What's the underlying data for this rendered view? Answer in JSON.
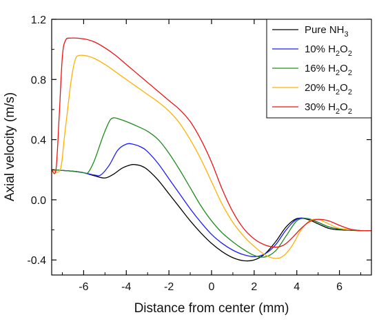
{
  "chart_data": {
    "type": "line",
    "xlabel": "Distance from center (mm)",
    "ylabel": "Axial velocity (m/s)",
    "xlim": [
      -7.5,
      7.5
    ],
    "ylim": [
      -0.5,
      1.2
    ],
    "xticks": [
      -6,
      -4,
      -2,
      0,
      2,
      4,
      6
    ],
    "xtick_labels": [
      "-6",
      "-4",
      "-2",
      "0",
      "2",
      "4",
      "6"
    ],
    "yticks": [
      -0.4,
      0.0,
      0.4,
      0.8,
      1.2
    ],
    "ytick_labels": [
      "-0.4",
      "0.0",
      "0.4",
      "0.8",
      "1.2"
    ],
    "grid": false,
    "legend_position": "top-right",
    "series": [
      {
        "name": "Pure NH3",
        "legend": {
          "base": "Pure NH",
          "sub": "3",
          "tail": ""
        },
        "color": "#000000",
        "points": [
          [
            -7.5,
            0.2
          ],
          [
            -6.5,
            0.19
          ],
          [
            -6.0,
            0.18
          ],
          [
            -5.5,
            0.16
          ],
          [
            -5.0,
            0.145
          ],
          [
            -4.6,
            0.17
          ],
          [
            -4.2,
            0.21
          ],
          [
            -3.8,
            0.232
          ],
          [
            -3.6,
            0.234
          ],
          [
            -3.3,
            0.225
          ],
          [
            -3.0,
            0.2
          ],
          [
            -2.5,
            0.13
          ],
          [
            -2.0,
            0.04
          ],
          [
            -1.5,
            -0.05
          ],
          [
            -1.0,
            -0.14
          ],
          [
            -0.5,
            -0.22
          ],
          [
            0.0,
            -0.29
          ],
          [
            0.5,
            -0.345
          ],
          [
            1.0,
            -0.385
          ],
          [
            1.5,
            -0.405
          ],
          [
            2.0,
            -0.4
          ],
          [
            2.5,
            -0.36
          ],
          [
            3.0,
            -0.28
          ],
          [
            3.5,
            -0.18
          ],
          [
            4.0,
            -0.125
          ],
          [
            4.5,
            -0.13
          ],
          [
            5.0,
            -0.16
          ],
          [
            5.5,
            -0.19
          ],
          [
            6.0,
            -0.2
          ],
          [
            7.0,
            -0.205
          ],
          [
            7.5,
            -0.205
          ]
        ]
      },
      {
        "name": "10% H2O2",
        "legend": {
          "base": "10% H",
          "sub": "2",
          "tail": "O",
          "sub2": "2"
        },
        "color": "#1a1aff",
        "points": [
          [
            -7.5,
            0.2
          ],
          [
            -6.5,
            0.19
          ],
          [
            -6.0,
            0.18
          ],
          [
            -5.5,
            0.165
          ],
          [
            -5.2,
            0.165
          ],
          [
            -4.8,
            0.23
          ],
          [
            -4.4,
            0.33
          ],
          [
            -4.0,
            0.37
          ],
          [
            -3.7,
            0.37
          ],
          [
            -3.3,
            0.35
          ],
          [
            -3.0,
            0.32
          ],
          [
            -2.5,
            0.24
          ],
          [
            -2.0,
            0.14
          ],
          [
            -1.5,
            0.04
          ],
          [
            -1.0,
            -0.06
          ],
          [
            -0.5,
            -0.15
          ],
          [
            0.0,
            -0.23
          ],
          [
            0.5,
            -0.29
          ],
          [
            1.0,
            -0.335
          ],
          [
            1.5,
            -0.365
          ],
          [
            2.0,
            -0.378
          ],
          [
            2.5,
            -0.36
          ],
          [
            3.0,
            -0.3
          ],
          [
            3.5,
            -0.2
          ],
          [
            4.0,
            -0.13
          ],
          [
            4.5,
            -0.125
          ],
          [
            5.0,
            -0.15
          ],
          [
            5.5,
            -0.18
          ],
          [
            6.0,
            -0.195
          ],
          [
            7.0,
            -0.205
          ],
          [
            7.5,
            -0.205
          ]
        ]
      },
      {
        "name": "16% H2O2",
        "legend": {
          "base": "16% H",
          "sub": "2",
          "tail": "O",
          "sub2": "2"
        },
        "color": "#1a8c1a",
        "points": [
          [
            -7.5,
            0.2
          ],
          [
            -6.5,
            0.19
          ],
          [
            -6.0,
            0.18
          ],
          [
            -5.8,
            0.18
          ],
          [
            -5.5,
            0.26
          ],
          [
            -5.1,
            0.42
          ],
          [
            -4.8,
            0.52
          ],
          [
            -4.6,
            0.545
          ],
          [
            -4.3,
            0.535
          ],
          [
            -4.0,
            0.52
          ],
          [
            -3.5,
            0.49
          ],
          [
            -3.0,
            0.455
          ],
          [
            -2.5,
            0.4
          ],
          [
            -2.0,
            0.31
          ],
          [
            -1.5,
            0.2
          ],
          [
            -1.0,
            0.08
          ],
          [
            -0.5,
            -0.04
          ],
          [
            0.0,
            -0.14
          ],
          [
            0.5,
            -0.22
          ],
          [
            1.0,
            -0.28
          ],
          [
            1.5,
            -0.33
          ],
          [
            2.0,
            -0.37
          ],
          [
            2.5,
            -0.38
          ],
          [
            3.0,
            -0.34
          ],
          [
            3.5,
            -0.24
          ],
          [
            4.0,
            -0.14
          ],
          [
            4.5,
            -0.125
          ],
          [
            5.0,
            -0.15
          ],
          [
            5.5,
            -0.18
          ],
          [
            6.0,
            -0.195
          ],
          [
            7.0,
            -0.205
          ],
          [
            7.5,
            -0.205
          ]
        ]
      },
      {
        "name": "20% H2O2",
        "legend": {
          "base": "20% H",
          "sub": "2",
          "tail": "O",
          "sub2": "2"
        },
        "color": "#ffb000",
        "points": [
          [
            -7.5,
            0.2
          ],
          [
            -7.1,
            0.2
          ],
          [
            -6.9,
            0.42
          ],
          [
            -6.6,
            0.78
          ],
          [
            -6.4,
            0.93
          ],
          [
            -6.2,
            0.96
          ],
          [
            -5.8,
            0.955
          ],
          [
            -5.5,
            0.94
          ],
          [
            -5.0,
            0.9
          ],
          [
            -4.5,
            0.85
          ],
          [
            -4.0,
            0.8
          ],
          [
            -3.5,
            0.75
          ],
          [
            -3.0,
            0.7
          ],
          [
            -2.5,
            0.65
          ],
          [
            -2.0,
            0.59
          ],
          [
            -1.5,
            0.51
          ],
          [
            -1.0,
            0.4
          ],
          [
            -0.5,
            0.27
          ],
          [
            0.0,
            0.12
          ],
          [
            0.5,
            -0.03
          ],
          [
            1.0,
            -0.15
          ],
          [
            1.5,
            -0.24
          ],
          [
            2.0,
            -0.31
          ],
          [
            2.5,
            -0.365
          ],
          [
            3.0,
            -0.39
          ],
          [
            3.4,
            -0.37
          ],
          [
            3.8,
            -0.3
          ],
          [
            4.2,
            -0.2
          ],
          [
            4.6,
            -0.14
          ],
          [
            5.0,
            -0.13
          ],
          [
            5.5,
            -0.16
          ],
          [
            6.0,
            -0.19
          ],
          [
            7.0,
            -0.205
          ],
          [
            7.5,
            -0.205
          ]
        ]
      },
      {
        "name": "30% H2O2",
        "legend": {
          "base": "30% H",
          "sub": "2",
          "tail": "O",
          "sub2": "2"
        },
        "color": "#ee1111",
        "points": [
          [
            -7.5,
            0.2
          ],
          [
            -7.3,
            0.2
          ],
          [
            -7.15,
            0.55
          ],
          [
            -7.0,
            0.95
          ],
          [
            -6.85,
            1.06
          ],
          [
            -6.6,
            1.075
          ],
          [
            -6.0,
            1.07
          ],
          [
            -5.5,
            1.05
          ],
          [
            -5.0,
            1.01
          ],
          [
            -4.5,
            0.96
          ],
          [
            -4.0,
            0.9
          ],
          [
            -3.5,
            0.84
          ],
          [
            -3.0,
            0.78
          ],
          [
            -2.5,
            0.72
          ],
          [
            -2.0,
            0.66
          ],
          [
            -1.5,
            0.6
          ],
          [
            -1.0,
            0.52
          ],
          [
            -0.5,
            0.4
          ],
          [
            0.0,
            0.25
          ],
          [
            0.5,
            0.07
          ],
          [
            1.0,
            -0.08
          ],
          [
            1.5,
            -0.19
          ],
          [
            2.0,
            -0.26
          ],
          [
            2.5,
            -0.3
          ],
          [
            3.0,
            -0.315
          ],
          [
            3.4,
            -0.3
          ],
          [
            3.8,
            -0.25
          ],
          [
            4.2,
            -0.19
          ],
          [
            4.6,
            -0.145
          ],
          [
            5.0,
            -0.13
          ],
          [
            5.5,
            -0.14
          ],
          [
            6.0,
            -0.17
          ],
          [
            6.5,
            -0.195
          ],
          [
            7.0,
            -0.205
          ],
          [
            7.5,
            -0.205
          ]
        ]
      }
    ]
  }
}
